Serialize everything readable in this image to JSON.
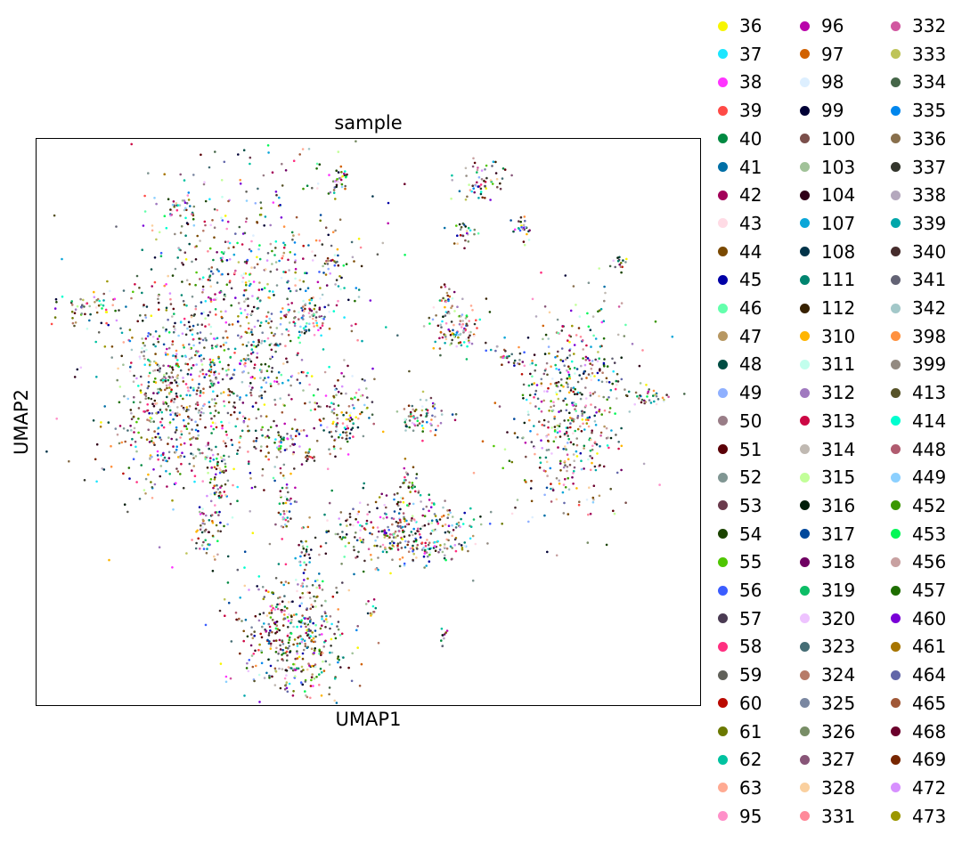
{
  "chart_data": {
    "type": "scatter",
    "title": "sample",
    "xlabel": "UMAP1",
    "ylabel": "UMAP2",
    "xticks": [],
    "yticks": [],
    "grid": false,
    "legend_placement": "right, outside plot, 3 columns",
    "point_size": "small",
    "series": [
      {
        "name": "36",
        "color": "#f7f500"
      },
      {
        "name": "37",
        "color": "#1ce6ff"
      },
      {
        "name": "38",
        "color": "#ff34ff"
      },
      {
        "name": "39",
        "color": "#ff4a46"
      },
      {
        "name": "40",
        "color": "#008941"
      },
      {
        "name": "41",
        "color": "#006fa6"
      },
      {
        "name": "42",
        "color": "#a30059"
      },
      {
        "name": "43",
        "color": "#ffdbe5"
      },
      {
        "name": "44",
        "color": "#7a4900"
      },
      {
        "name": "45",
        "color": "#0000a6"
      },
      {
        "name": "46",
        "color": "#63ffac"
      },
      {
        "name": "47",
        "color": "#b79762"
      },
      {
        "name": "48",
        "color": "#004d43"
      },
      {
        "name": "49",
        "color": "#8fb0ff"
      },
      {
        "name": "50",
        "color": "#997d87"
      },
      {
        "name": "51",
        "color": "#5a0007"
      },
      {
        "name": "52",
        "color": "#809693"
      },
      {
        "name": "53",
        "color": "#6a3a4c"
      },
      {
        "name": "54",
        "color": "#1b4400"
      },
      {
        "name": "55",
        "color": "#4fc601"
      },
      {
        "name": "56",
        "color": "#3b5dff"
      },
      {
        "name": "57",
        "color": "#4a3b53"
      },
      {
        "name": "58",
        "color": "#ff2f80"
      },
      {
        "name": "59",
        "color": "#61615a"
      },
      {
        "name": "60",
        "color": "#ba0900"
      },
      {
        "name": "61",
        "color": "#6b7900"
      },
      {
        "name": "62",
        "color": "#00c2a0"
      },
      {
        "name": "63",
        "color": "#ffaa92"
      },
      {
        "name": "95",
        "color": "#ff90c9"
      },
      {
        "name": "96",
        "color": "#b903aa"
      },
      {
        "name": "97",
        "color": "#d16100"
      },
      {
        "name": "98",
        "color": "#ddefff"
      },
      {
        "name": "99",
        "color": "#000035"
      },
      {
        "name": "100",
        "color": "#7b4f4b"
      },
      {
        "name": "103",
        "color": "#a1c299"
      },
      {
        "name": "104",
        "color": "#300018"
      },
      {
        "name": "107",
        "color": "#0aa6d8"
      },
      {
        "name": "108",
        "color": "#013349"
      },
      {
        "name": "111",
        "color": "#00846f"
      },
      {
        "name": "112",
        "color": "#372101"
      },
      {
        "name": "310",
        "color": "#ffb500"
      },
      {
        "name": "311",
        "color": "#c2ffed"
      },
      {
        "name": "312",
        "color": "#a079bf"
      },
      {
        "name": "313",
        "color": "#cc0744"
      },
      {
        "name": "314",
        "color": "#c0b9b2"
      },
      {
        "name": "315",
        "color": "#c2ff99"
      },
      {
        "name": "316",
        "color": "#001e09"
      },
      {
        "name": "317",
        "color": "#00489c"
      },
      {
        "name": "318",
        "color": "#6f0062"
      },
      {
        "name": "319",
        "color": "#0cbd66"
      },
      {
        "name": "320",
        "color": "#eec3ff"
      },
      {
        "name": "323",
        "color": "#456d75"
      },
      {
        "name": "324",
        "color": "#b77b68"
      },
      {
        "name": "325",
        "color": "#7a87a1"
      },
      {
        "name": "326",
        "color": "#788d66"
      },
      {
        "name": "327",
        "color": "#885578"
      },
      {
        "name": "328",
        "color": "#fad09f"
      },
      {
        "name": "331",
        "color": "#ff8a9a"
      },
      {
        "name": "332",
        "color": "#d157a0"
      },
      {
        "name": "333",
        "color": "#bec459"
      },
      {
        "name": "334",
        "color": "#456648"
      },
      {
        "name": "335",
        "color": "#0086ed"
      },
      {
        "name": "336",
        "color": "#886f4c"
      },
      {
        "name": "337",
        "color": "#34362d"
      },
      {
        "name": "338",
        "color": "#b4a8bd"
      },
      {
        "name": "339",
        "color": "#00a6aa"
      },
      {
        "name": "340",
        "color": "#452c2c"
      },
      {
        "name": "341",
        "color": "#636375"
      },
      {
        "name": "342",
        "color": "#a3c8c9"
      },
      {
        "name": "398",
        "color": "#ff913f"
      },
      {
        "name": "399",
        "color": "#938a81"
      },
      {
        "name": "413",
        "color": "#575329"
      },
      {
        "name": "414",
        "color": "#00fecf"
      },
      {
        "name": "448",
        "color": "#b05b6f"
      },
      {
        "name": "449",
        "color": "#8cd0ff"
      },
      {
        "name": "452",
        "color": "#3b9700"
      },
      {
        "name": "453",
        "color": "#04f757"
      },
      {
        "name": "456",
        "color": "#c8a1a1"
      },
      {
        "name": "457",
        "color": "#1e6e00"
      },
      {
        "name": "460",
        "color": "#7900d7"
      },
      {
        "name": "461",
        "color": "#a77500"
      },
      {
        "name": "464",
        "color": "#6367a9"
      },
      {
        "name": "465",
        "color": "#a05837"
      },
      {
        "name": "468",
        "color": "#6b002c"
      },
      {
        "name": "469",
        "color": "#772600"
      },
      {
        "name": "472",
        "color": "#d790ff"
      },
      {
        "name": "473",
        "color": "#9b9700"
      }
    ]
  }
}
